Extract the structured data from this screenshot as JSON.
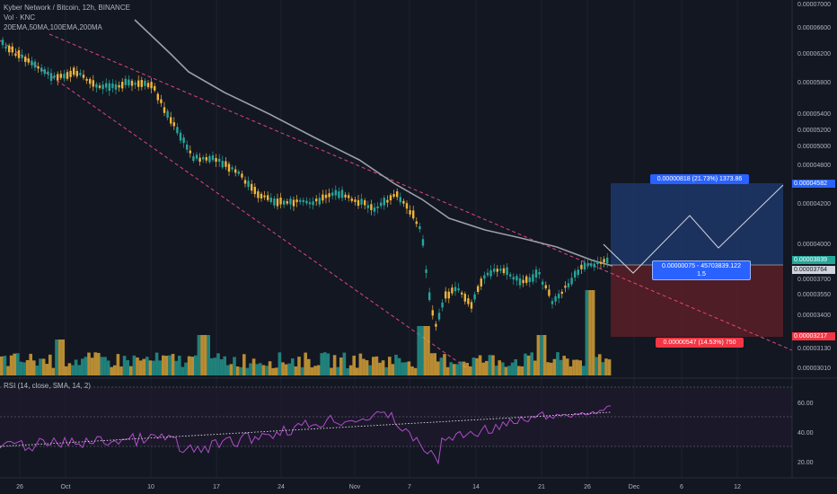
{
  "header": {
    "symbol_line": "Kyber Network / Bitcoin, 12h, BINANCE",
    "volume_line": "Vol · KNC",
    "ema_line": "20EMA,50MA,100EMA,200MA"
  },
  "rsi": {
    "label": "RSI (14, close, SMA, 14, 2)",
    "ticks": [
      "60.00",
      "40.00",
      "20.00"
    ]
  },
  "price_axis": {
    "ticks": [
      "0.00007000",
      "0.00006600",
      "0.00006200",
      "0.00005800",
      "0.00005400",
      "0.00005200",
      "0.00005000",
      "0.00004800",
      "0.00004400",
      "0.00004200",
      "0.00004000",
      "0.00003700",
      "0.00003550",
      "0.00003400",
      "0.00003130",
      "0.00003010"
    ],
    "top_target_tag": "0.00004582",
    "current_price_tag": "0.00003839",
    "entry_tag": "0.00003764",
    "stop_tag": "0.00003217"
  },
  "time_axis": {
    "ticks": [
      "26",
      "Oct",
      "10",
      "17",
      "24",
      "Nov",
      "7",
      "14",
      "21",
      "26",
      "Dec",
      "6",
      "12"
    ]
  },
  "position_tool": {
    "target_label": "0.00000818 (21.73%) 1373.86",
    "entry_label_line1": "0.00000075 - 45703839.122",
    "entry_label_line2": "1.5",
    "stop_label": "0.00000547 (14.53%) 750"
  },
  "colors": {
    "background": "#131722",
    "up_candle": "#26a69a",
    "down_candle": "#f0b43a",
    "trendline": "#e0457b",
    "ma_line": "#9b9ea8",
    "rsi_line": "#b04cc9",
    "target_zone": "#1e3a6e",
    "stop_zone": "#5a1e26",
    "tag_blue": "#2962ff",
    "tag_green": "#26a69a",
    "tag_red": "#f23645"
  }
}
